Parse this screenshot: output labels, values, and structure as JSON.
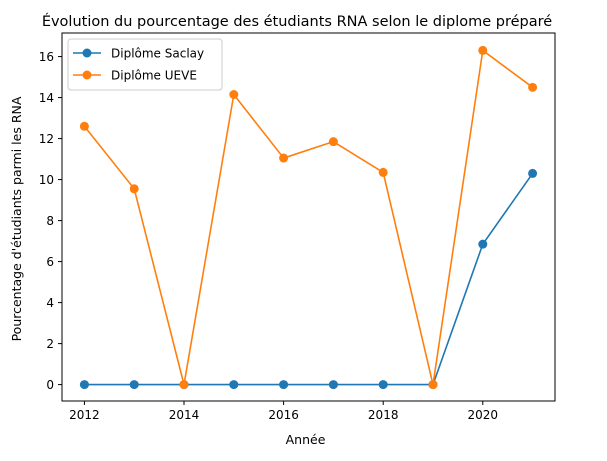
{
  "chart_data": {
    "type": "line",
    "title": "Évolution du pourcentage des étudiants RNA selon le diplome préparé",
    "xlabel": "Année",
    "ylabel": "Pourcentage d'étudiants parmi les RNA",
    "x": [
      2012,
      2013,
      2014,
      2015,
      2016,
      2017,
      2018,
      2019,
      2020,
      2021
    ],
    "xlim": [
      2011.55,
      2021.45
    ],
    "ylim": [
      -0.8,
      17.15
    ],
    "xticks": [
      2012,
      2014,
      2016,
      2018,
      2020
    ],
    "yticks": [
      0,
      2,
      4,
      6,
      8,
      10,
      12,
      14,
      16
    ],
    "grid": false,
    "legend_position": "top-left",
    "series": [
      {
        "name": "Diplôme Saclay",
        "color": "#1f77b4",
        "values": [
          0,
          0,
          0,
          0,
          0,
          0,
          0,
          0,
          6.85,
          10.3
        ]
      },
      {
        "name": "Diplôme UEVE",
        "color": "#ff7f0e",
        "values": [
          12.6,
          9.55,
          0,
          14.15,
          11.05,
          11.85,
          10.35,
          0,
          16.3,
          14.5
        ]
      }
    ]
  }
}
